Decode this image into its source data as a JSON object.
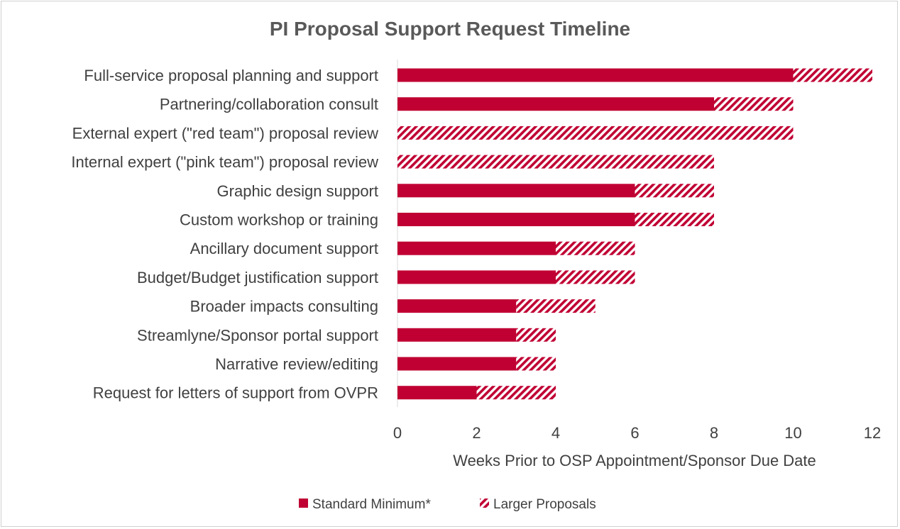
{
  "chart_data": {
    "type": "bar",
    "orientation": "horizontal",
    "stacked": true,
    "title": "PI Proposal Support Request Timeline",
    "xlabel": "Weeks Prior to OSP Appointment/Sponsor Due Date",
    "ylabel": "",
    "xlim": [
      0,
      12
    ],
    "xticks": [
      "0",
      "2",
      "4",
      "6",
      "8",
      "10",
      "12"
    ],
    "grid": false,
    "legend_position": "bottom",
    "categories": [
      "Full-service proposal planning and support",
      "Partnering/collaboration consult",
      "External expert (\"red team\") proposal review",
      "Internal expert (\"pink team\") proposal review",
      "Graphic design support",
      "Custom workshop or training",
      "Ancillary document support",
      "Budget/Budget justification support",
      "Broader impacts consulting",
      "Streamlyne/Sponsor portal support",
      "Narrative review/editing",
      "Request for letters of support from OVPR"
    ],
    "series": [
      {
        "name": "Standard Minimum*",
        "pattern": "solid",
        "color": "#c00033",
        "values": [
          10,
          8,
          0,
          0,
          6,
          6,
          4,
          4,
          3,
          3,
          3,
          2
        ]
      },
      {
        "name": "Larger Proposals",
        "pattern": "hatched",
        "color": "#c00033",
        "values": [
          2,
          2,
          10,
          8,
          2,
          2,
          2,
          2,
          2,
          1,
          1,
          2
        ]
      }
    ]
  }
}
